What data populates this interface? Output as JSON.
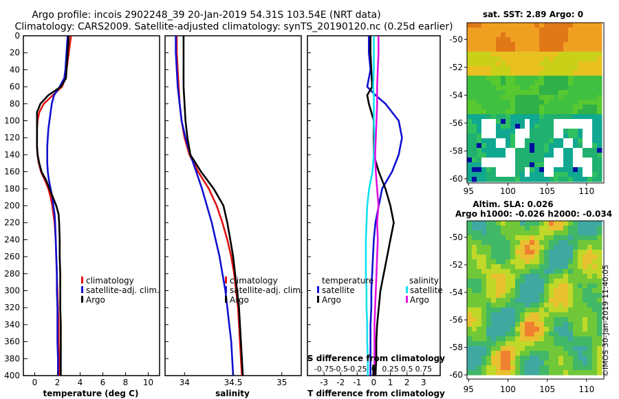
{
  "header": {
    "line1": "Argo profile: incois 2902248_39 20-Jan-2019 54.31S 103.54E (NRT data)",
    "line2": "Climatology: CARS2009. Satellite-adjusted climatology: synTS_20190120.nc (0.25d earlier)"
  },
  "colors": {
    "climatology": "#e01010",
    "satellite": "#1010d0",
    "argo": "#000000",
    "sal_sat": "#10e0f0",
    "sal_argo": "#e010e0"
  },
  "chart_data": [
    {
      "type": "line",
      "title": "temperature",
      "xlabel": "temperature (deg C)",
      "xlim": [
        -1,
        11
      ],
      "ylim": [
        400,
        0
      ],
      "xticks": [
        "0",
        "2",
        "4",
        "6",
        "8",
        "10"
      ],
      "xtick_values": [
        0,
        2,
        4,
        6,
        8,
        10
      ],
      "yticks": [
        "0",
        "20",
        "40",
        "60",
        "80",
        "100",
        "120",
        "140",
        "160",
        "180",
        "200",
        "220",
        "240",
        "260",
        "280",
        "300",
        "320",
        "340",
        "360",
        "380",
        "400"
      ],
      "ytick_values": [
        0,
        20,
        40,
        60,
        80,
        100,
        120,
        140,
        160,
        180,
        200,
        220,
        240,
        260,
        280,
        300,
        320,
        340,
        360,
        380,
        400
      ],
      "legend": [
        "climatology",
        "satellite-adj. clim.",
        "Argo"
      ],
      "depth": [
        0,
        10,
        20,
        30,
        40,
        50,
        60,
        70,
        80,
        90,
        100,
        110,
        120,
        130,
        140,
        150,
        160,
        170,
        180,
        190,
        200,
        210,
        220,
        240,
        260,
        280,
        300,
        320,
        340,
        360,
        380,
        400
      ],
      "series": [
        {
          "name": "climatology",
          "values": [
            3.2,
            3.1,
            3.0,
            2.9,
            2.8,
            2.7,
            2.4,
            1.6,
            0.8,
            0.4,
            0.25,
            0.2,
            0.2,
            0.2,
            0.25,
            0.35,
            0.55,
            0.9,
            1.2,
            1.4,
            1.55,
            1.65,
            1.75,
            1.85,
            1.9,
            1.95,
            2.0,
            2.05,
            2.1,
            2.1,
            2.15,
            2.2
          ]
        },
        {
          "name": "satellite-adj. clim.",
          "values": [
            2.9,
            2.85,
            2.8,
            2.75,
            2.7,
            2.6,
            2.2,
            1.7,
            1.5,
            1.4,
            1.3,
            1.2,
            1.15,
            1.1,
            1.1,
            1.1,
            1.15,
            1.25,
            1.4,
            1.55,
            1.65,
            1.75,
            1.8,
            1.85,
            1.9,
            1.95,
            1.95,
            2.0,
            2.0,
            2.0,
            2.05,
            2.05
          ]
        },
        {
          "name": "Argo",
          "values": [
            3.0,
            2.95,
            2.9,
            2.85,
            2.8,
            2.75,
            2.3,
            1.2,
            0.5,
            0.2,
            0.2,
            0.2,
            0.2,
            0.2,
            0.25,
            0.4,
            0.6,
            1.0,
            1.3,
            1.6,
            1.9,
            2.1,
            2.15,
            2.2,
            2.2,
            2.25,
            2.25,
            2.25,
            2.3,
            2.3,
            2.3,
            2.3
          ]
        }
      ]
    },
    {
      "type": "line",
      "title": "salinity",
      "xlabel": "salinity",
      "xlim": [
        33.8,
        35.2
      ],
      "ylim": [
        400,
        0
      ],
      "xticks": [
        "34",
        "34.5",
        "35"
      ],
      "xtick_values": [
        34,
        34.5,
        35
      ],
      "legend": [
        "climatology",
        "satellite-adj. clim.",
        "Argo"
      ],
      "depth": [
        0,
        20,
        40,
        60,
        80,
        100,
        120,
        140,
        160,
        180,
        200,
        220,
        240,
        260,
        280,
        300,
        320,
        340,
        360,
        380,
        400
      ],
      "series": [
        {
          "name": "climatology",
          "values": [
            33.92,
            33.92,
            33.93,
            33.94,
            33.95,
            33.97,
            34.0,
            34.05,
            34.14,
            34.25,
            34.33,
            34.39,
            34.44,
            34.48,
            34.51,
            34.53,
            34.55,
            34.56,
            34.57,
            34.58,
            34.59
          ]
        },
        {
          "name": "satellite-adj. clim.",
          "values": [
            33.91,
            33.91,
            33.92,
            33.93,
            33.95,
            33.97,
            34.01,
            34.06,
            34.12,
            34.18,
            34.23,
            34.28,
            34.32,
            34.36,
            34.39,
            34.42,
            34.44,
            34.46,
            34.48,
            34.49,
            34.5
          ]
        },
        {
          "name": "Argo",
          "values": [
            33.99,
            33.99,
            33.99,
            33.99,
            34.0,
            34.01,
            34.03,
            34.06,
            34.17,
            34.3,
            34.4,
            34.44,
            34.47,
            34.5,
            34.52,
            34.54,
            34.56,
            34.57,
            34.58,
            34.59,
            34.6
          ]
        }
      ]
    },
    {
      "type": "line",
      "title": "difference from climatology",
      "xlabel": "T difference from climatology",
      "xlabel_top": "S difference from climatology",
      "xlim": [
        -4,
        4
      ],
      "ylim": [
        400,
        0
      ],
      "xticks": [
        "-3",
        "-2",
        "-1",
        "0",
        "1",
        "2",
        "3"
      ],
      "xtick_values": [
        -3,
        -2,
        -1,
        0,
        1,
        2,
        3
      ],
      "sticks": [
        "-0.75",
        "-0.5",
        "-0.25",
        "0",
        "0.25",
        "0.5",
        "0.75"
      ],
      "legend_temperature_title": "temperature",
      "legend_salinity_title": "salinity",
      "legend_temperature": [
        "satellite",
        "Argo"
      ],
      "legend_salinity": [
        "satellite",
        "Argo"
      ],
      "depth": [
        0,
        20,
        40,
        60,
        70,
        80,
        100,
        120,
        140,
        160,
        180,
        200,
        220,
        240,
        260,
        280,
        300,
        320,
        340,
        360,
        380,
        400
      ],
      "series": [
        {
          "name": "T satellite",
          "values": [
            -0.3,
            -0.3,
            -0.2,
            -0.4,
            0.1,
            0.7,
            1.5,
            1.7,
            1.5,
            1.1,
            0.5,
            0.3,
            0.1,
            0.0,
            -0.05,
            -0.1,
            -0.15,
            -0.15,
            -0.2,
            -0.2,
            -0.2,
            -0.2
          ]
        },
        {
          "name": "T Argo",
          "values": [
            -0.2,
            -0.2,
            -0.15,
            -0.1,
            -0.4,
            -0.3,
            0.0,
            0.0,
            0.0,
            0.3,
            0.7,
            1.0,
            1.2,
            1.0,
            0.8,
            0.6,
            0.4,
            0.3,
            0.2,
            0.15,
            0.15,
            0.1
          ]
        },
        {
          "name": "S satellite",
          "values": [
            0.0,
            0.0,
            0.0,
            -0.01,
            0.0,
            0.0,
            0.0,
            0.01,
            0.0,
            -0.02,
            -0.07,
            -0.1,
            -0.11,
            -0.12,
            -0.12,
            -0.12,
            -0.11,
            -0.11,
            -0.1,
            -0.1,
            -0.09,
            -0.09
          ]
        },
        {
          "name": "S Argo",
          "values": [
            0.07,
            0.07,
            0.06,
            0.05,
            0.05,
            0.05,
            0.04,
            0.03,
            0.02,
            0.03,
            0.05,
            0.07,
            0.05,
            0.06,
            0.05,
            0.04,
            0.03,
            0.02,
            0.01,
            0.01,
            0.01,
            0.01
          ]
        }
      ]
    },
    {
      "type": "heatmap",
      "title": "sat. SST: 2.89 Argo: 0",
      "xlim": [
        94.8,
        112.2
      ],
      "ylim": [
        -60.3,
        -48.8
      ],
      "xticks": [
        "95",
        "100",
        "105",
        "110"
      ],
      "xtick_values": [
        95,
        100,
        105,
        110
      ],
      "yticks": [
        "-50",
        "-52",
        "-54",
        "-56",
        "-58",
        "-60"
      ],
      "ytick_values": [
        -50,
        -52,
        -54,
        -56,
        -58,
        -60
      ]
    },
    {
      "type": "heatmap",
      "title": "Altim. SLA: 0.026",
      "subtitle": "Argo h1000: -0.026 h2000: -0.034",
      "xlim": [
        94.8,
        112.2
      ],
      "ylim": [
        -60.3,
        -48.8
      ],
      "xticks": [
        "95",
        "100",
        "105",
        "110"
      ],
      "xtick_values": [
        95,
        100,
        105,
        110
      ],
      "yticks": [
        "-50",
        "-52",
        "-54",
        "-56",
        "-58",
        "-60"
      ],
      "ytick_values": [
        -50,
        -52,
        -54,
        -56,
        -58,
        -60
      ]
    }
  ],
  "stamp": "©IMOS 30-Jan-2019 11:40:05"
}
